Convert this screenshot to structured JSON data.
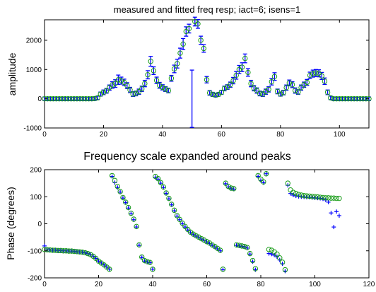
{
  "chart_data": [
    {
      "type": "scatter",
      "title": "measured and fitted freq resp; iact=6; isens=1",
      "xlabel": "",
      "ylabel": "amplitude",
      "xlim": [
        0,
        110
      ],
      "ylim": [
        -1000,
        2700
      ],
      "xticks": [
        "0",
        "20",
        "40",
        "60",
        "80",
        "100"
      ],
      "yticks": [
        "-1000",
        "0",
        "1000",
        "2000"
      ],
      "grid": false,
      "series": [
        {
          "marker": "errorbar",
          "color": "#0000ff",
          "x": [
            0,
            1,
            2,
            3,
            4,
            5,
            6,
            7,
            8,
            9,
            10,
            11,
            12,
            13,
            14,
            15,
            16,
            17,
            18,
            19,
            20,
            21,
            22,
            23,
            24,
            25,
            26,
            27,
            28,
            29,
            30,
            31,
            32,
            33,
            34,
            35,
            36,
            37,
            38,
            39,
            40,
            41,
            42,
            43,
            44,
            45,
            46,
            47,
            48,
            49,
            50,
            51,
            52,
            53,
            54,
            55,
            56,
            57,
            58,
            59,
            60,
            61,
            62,
            63,
            64,
            65,
            66,
            67,
            68,
            69,
            70,
            71,
            72,
            73,
            74,
            75,
            76,
            77,
            78,
            79,
            80,
            81,
            82,
            83,
            84,
            85,
            86,
            87,
            88,
            89,
            90,
            91,
            92,
            93,
            94,
            95,
            96,
            97,
            98,
            99,
            100,
            101,
            102,
            103,
            104,
            105,
            106,
            107,
            108,
            109,
            110
          ],
          "y": [
            0,
            0,
            0,
            0,
            0,
            0,
            0,
            0,
            0,
            0,
            0,
            0,
            0,
            0,
            0,
            0,
            0,
            5,
            30,
            160,
            220,
            270,
            380,
            470,
            520,
            650,
            620,
            560,
            450,
            300,
            160,
            180,
            240,
            340,
            520,
            820,
            1280,
            960,
            630,
            460,
            390,
            330,
            280,
            700,
            1020,
            1200,
            1560,
            1870,
            2300,
            2400,
            0,
            2640,
            2560,
            2000,
            1720,
            650,
            200,
            150,
            120,
            150,
            220,
            350,
            400,
            480,
            620,
            800,
            1000,
            1080,
            1380,
            900,
            520,
            360,
            280,
            180,
            160,
            240,
            320,
            580,
            760,
            250,
            160,
            210,
            380,
            540,
            480,
            280,
            230,
            380,
            480,
            560,
            800,
            860,
            880,
            870,
            780,
            600,
            220,
            30,
            0,
            0,
            0,
            0,
            0,
            0,
            0,
            0,
            0,
            0,
            0,
            0,
            0
          ],
          "err": [
            60,
            60,
            60,
            60,
            60,
            60,
            60,
            60,
            60,
            60,
            60,
            60,
            60,
            60,
            60,
            60,
            60,
            60,
            60,
            70,
            80,
            80,
            90,
            110,
            130,
            160,
            120,
            110,
            100,
            90,
            80,
            80,
            90,
            90,
            110,
            140,
            170,
            130,
            110,
            100,
            90,
            80,
            80,
            100,
            130,
            150,
            170,
            190,
            160,
            150,
            980,
            150,
            150,
            140,
            130,
            110,
            80,
            70,
            60,
            60,
            70,
            80,
            80,
            90,
            110,
            130,
            140,
            150,
            150,
            130,
            110,
            90,
            90,
            80,
            80,
            90,
            90,
            110,
            130,
            80,
            70,
            80,
            90,
            100,
            100,
            90,
            80,
            90,
            90,
            100,
            110,
            120,
            120,
            120,
            120,
            110,
            80,
            60,
            60,
            60,
            60,
            60,
            60,
            60,
            60,
            60,
            60,
            60,
            60,
            60,
            60
          ]
        },
        {
          "marker": "circle",
          "color": "#1a9c1a",
          "x": [
            0,
            1,
            2,
            3,
            4,
            5,
            6,
            7,
            8,
            9,
            10,
            11,
            12,
            13,
            14,
            15,
            16,
            17,
            18,
            19,
            20,
            21,
            22,
            23,
            24,
            25,
            26,
            27,
            28,
            29,
            30,
            31,
            32,
            33,
            34,
            35,
            36,
            37,
            38,
            39,
            40,
            41,
            42,
            43,
            44,
            45,
            46,
            47,
            48,
            49,
            51,
            52,
            53,
            54,
            55,
            56,
            57,
            58,
            59,
            60,
            61,
            62,
            63,
            64,
            65,
            66,
            67,
            68,
            69,
            70,
            71,
            72,
            73,
            74,
            75,
            76,
            77,
            78,
            79,
            80,
            81,
            82,
            83,
            84,
            85,
            86,
            87,
            88,
            89,
            90,
            91,
            92,
            93,
            94,
            95,
            96,
            97,
            98,
            99,
            100,
            101,
            102,
            103,
            104,
            105,
            106,
            107,
            108,
            109,
            110
          ],
          "y": [
            0,
            0,
            0,
            0,
            0,
            0,
            0,
            0,
            0,
            0,
            0,
            0,
            0,
            0,
            0,
            0,
            0,
            5,
            30,
            160,
            220,
            270,
            380,
            470,
            520,
            650,
            620,
            560,
            450,
            300,
            160,
            180,
            240,
            340,
            520,
            820,
            1280,
            960,
            630,
            460,
            390,
            330,
            280,
            700,
            1020,
            1200,
            1560,
            1870,
            2300,
            2400,
            2640,
            2560,
            2000,
            1720,
            650,
            200,
            150,
            120,
            150,
            220,
            350,
            400,
            480,
            620,
            800,
            1000,
            1080,
            1380,
            900,
            520,
            360,
            280,
            180,
            160,
            240,
            320,
            580,
            760,
            250,
            160,
            210,
            380,
            540,
            480,
            280,
            230,
            380,
            480,
            560,
            800,
            860,
            880,
            870,
            780,
            600,
            220,
            30,
            0,
            0,
            0,
            0,
            0,
            0,
            0,
            0,
            0,
            0,
            0,
            0,
            0
          ]
        }
      ]
    },
    {
      "type": "scatter",
      "title": "Frequency scale expanded around peaks",
      "xlabel": "",
      "ylabel": "Phase (degrees)",
      "xlim": [
        0,
        120
      ],
      "ylim": [
        -200,
        200
      ],
      "xticks": [
        "0",
        "20",
        "40",
        "60",
        "80",
        "100",
        "120"
      ],
      "yticks": [
        "-200",
        "-100",
        "0",
        "100",
        "200"
      ],
      "grid": false,
      "series": [
        {
          "marker": "plus",
          "color": "#0000ff",
          "x": [
            0,
            1,
            2,
            3,
            4,
            5,
            6,
            7,
            8,
            9,
            10,
            11,
            12,
            13,
            14,
            15,
            16,
            17,
            18,
            19,
            20,
            21,
            22,
            23,
            24,
            25,
            26,
            27,
            28,
            29,
            30,
            31,
            32,
            33,
            34,
            35,
            36,
            37,
            38,
            39,
            40,
            41,
            42,
            43,
            44,
            45,
            46,
            47,
            48,
            49,
            50,
            51,
            52,
            53,
            54,
            55,
            56,
            57,
            58,
            59,
            60,
            61,
            62,
            63,
            64,
            65,
            66,
            67,
            68,
            69,
            70,
            71,
            72,
            73,
            74,
            75,
            76,
            77,
            78,
            79,
            80,
            81,
            82,
            83,
            84,
            85,
            86,
            87,
            88,
            89,
            90,
            91,
            92,
            93,
            94,
            95,
            96,
            97,
            98,
            99,
            100,
            101,
            102,
            103,
            104,
            105,
            106,
            107,
            108,
            109
          ],
          "y": [
            -82,
            -96,
            -97,
            -98,
            -98,
            -99,
            -99,
            -100,
            -100,
            -101,
            -101,
            -102,
            -103,
            -104,
            -105,
            -107,
            -110,
            -114,
            -120,
            -128,
            -138,
            -145,
            -152,
            -160,
            -168,
            175,
            152,
            134,
            117,
            95,
            78,
            58,
            37,
            15,
            -12,
            -80,
            -125,
            -138,
            -142,
            -144,
            -168,
            172,
            165,
            150,
            134,
            112,
            92,
            70,
            48,
            28,
            15,
            0,
            -12,
            -23,
            -33,
            -40,
            -46,
            -51,
            -57,
            -62,
            -68,
            -73,
            -80,
            -86,
            -93,
            -100,
            -170,
            148,
            136,
            130,
            128,
            -80,
            -82,
            -84,
            -86,
            -90,
            -112,
            -140,
            -170,
            175,
            160,
            152,
            185,
            -110,
            -112,
            -116,
            -122,
            -134,
            -148,
            -175,
            142,
            112,
            106,
            103,
            101,
            100,
            99,
            98,
            98,
            97,
            96,
            95,
            94,
            92,
            88,
            80,
            40,
            -12,
            45,
            30
          ]
        },
        {
          "marker": "circle",
          "color": "#1a9c1a",
          "x": [
            0,
            1,
            2,
            3,
            4,
            5,
            6,
            7,
            8,
            9,
            10,
            11,
            12,
            13,
            14,
            15,
            16,
            17,
            18,
            19,
            20,
            21,
            22,
            23,
            24,
            25,
            26,
            27,
            28,
            29,
            30,
            31,
            32,
            33,
            34,
            35,
            36,
            37,
            38,
            39,
            40,
            41,
            42,
            43,
            44,
            45,
            46,
            47,
            48,
            49,
            50,
            51,
            52,
            53,
            54,
            55,
            56,
            57,
            58,
            59,
            60,
            61,
            62,
            63,
            64,
            65,
            66,
            67,
            68,
            69,
            70,
            71,
            72,
            73,
            74,
            75,
            76,
            77,
            78,
            79,
            80,
            81,
            82,
            83,
            84,
            85,
            86,
            87,
            88,
            89,
            90,
            91,
            92,
            93,
            94,
            95,
            96,
            97,
            98,
            99,
            100,
            101,
            102,
            103,
            104,
            105,
            106,
            107,
            108,
            109
          ],
          "y": [
            -95,
            -96,
            -97,
            -98,
            -98,
            -99,
            -99,
            -100,
            -100,
            -101,
            -101,
            -102,
            -103,
            -104,
            -105,
            -107,
            -110,
            -114,
            -120,
            -128,
            -138,
            -145,
            -152,
            -160,
            -168,
            178,
            160,
            138,
            119,
            97,
            80,
            60,
            39,
            17,
            -10,
            -78,
            -123,
            -136,
            -140,
            -143,
            -168,
            175,
            167,
            152,
            136,
            114,
            94,
            72,
            50,
            30,
            16,
            2,
            -10,
            -21,
            -31,
            -38,
            -44,
            -49,
            -55,
            -60,
            -66,
            -71,
            -78,
            -84,
            -91,
            -98,
            -168,
            150,
            138,
            132,
            130,
            -78,
            -80,
            -82,
            -84,
            -88,
            -110,
            -136,
            -166,
            178,
            165,
            155,
            185,
            -95,
            -98,
            -104,
            -112,
            -126,
            -142,
            -170,
            150,
            125,
            116,
            112,
            108,
            106,
            104,
            103,
            102,
            101,
            100,
            99,
            98,
            97,
            96,
            96,
            95,
            95,
            94,
            94
          ]
        }
      ]
    }
  ]
}
